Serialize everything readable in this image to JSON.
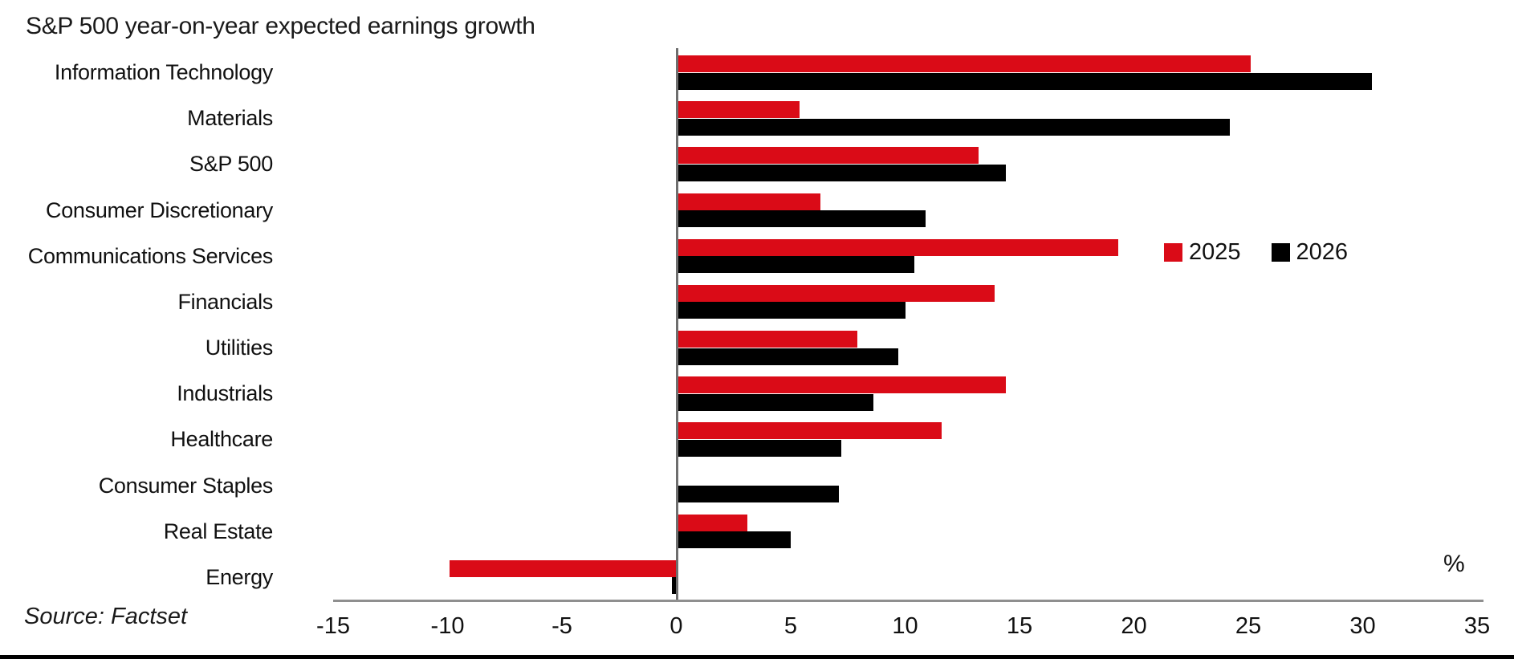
{
  "chart": {
    "title": "S&P 500 year-on-year expected earnings growth",
    "source": "Source: Factset",
    "unit_label": "%"
  },
  "chart_data": {
    "type": "bar",
    "orientation": "horizontal",
    "title": "S&P 500 year-on-year expected earnings growth",
    "xlabel": "%",
    "ylabel": "",
    "grid": false,
    "legend_position": "middle-right",
    "xlim": [
      -15,
      35
    ],
    "xticks": [
      -15,
      -10,
      -5,
      0,
      5,
      10,
      15,
      20,
      25,
      30,
      35
    ],
    "categories": [
      "Information Technology",
      "Materials",
      "S&P 500",
      "Consumer Discretionary",
      "Communications Services",
      "Financials",
      "Utilities",
      "Industrials",
      "Healthcare",
      "Consumer Staples",
      "Real Estate",
      "Energy"
    ],
    "series": [
      {
        "name": "2025",
        "color": "#da0b17",
        "values": [
          25.1,
          5.4,
          13.2,
          6.3,
          19.3,
          13.9,
          7.9,
          14.4,
          11.6,
          0,
          3.1,
          -9.9
        ]
      },
      {
        "name": "2026",
        "color": "#000000",
        "values": [
          30.4,
          24.2,
          14.4,
          10.9,
          10.4,
          10.0,
          9.7,
          8.6,
          7.2,
          7.1,
          5.0,
          -0.2
        ]
      }
    ]
  },
  "colors": {
    "accent_red": "#da0b17",
    "bar_black": "#000000",
    "axis_gray": "#8f8f8f",
    "zero_line_gray": "#6e6e6e",
    "text": "#1a1a1a"
  }
}
